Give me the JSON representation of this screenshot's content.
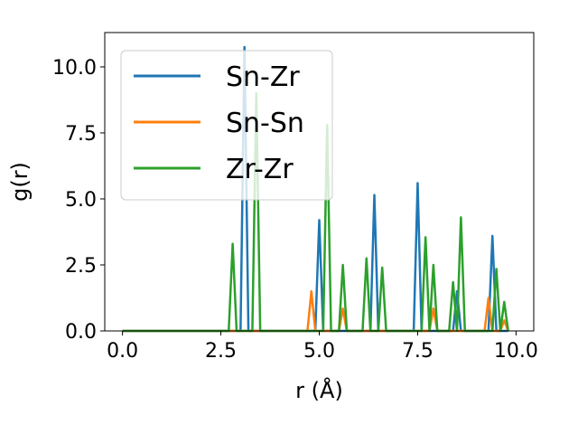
{
  "chart_data": {
    "type": "line",
    "xlabel": "r (Å)",
    "ylabel": "g(r)",
    "xlim": [
      -0.45,
      10.45
    ],
    "ylim": [
      0,
      11.3
    ],
    "xticks": [
      0.0,
      2.5,
      5.0,
      7.5,
      10.0
    ],
    "xtick_labels": [
      "0.0",
      "2.5",
      "5.0",
      "7.5",
      "10.0"
    ],
    "yticks": [
      0.0,
      2.5,
      5.0,
      7.5,
      10.0
    ],
    "ytick_labels": [
      "0.0",
      "2.5",
      "5.0",
      "7.5",
      "10.0"
    ],
    "grid": false,
    "legend_position": "top-left",
    "series": [
      {
        "name": "Sn-Zr",
        "color": "#1f77b4",
        "x": [
          0.0,
          3.0,
          3.1,
          3.2,
          4.9,
          5.0,
          5.1,
          6.3,
          6.4,
          6.5,
          7.4,
          7.5,
          7.6,
          8.4,
          8.5,
          8.6,
          9.3,
          9.4,
          9.5,
          9.8
        ],
        "y": [
          0.0,
          0.0,
          10.75,
          0.0,
          0.0,
          4.2,
          0.0,
          0.0,
          5.15,
          0.0,
          0.0,
          5.6,
          0.0,
          0.0,
          1.5,
          0.0,
          0.0,
          3.6,
          0.0,
          0.0
        ]
      },
      {
        "name": "Sn-Sn",
        "color": "#ff7f0e",
        "x": [
          0.0,
          4.7,
          4.8,
          4.9,
          5.5,
          5.6,
          5.7,
          7.8,
          7.9,
          8.0,
          9.2,
          9.3,
          9.4,
          9.6,
          9.7,
          9.8
        ],
        "y": [
          0.0,
          0.0,
          1.5,
          0.0,
          0.0,
          0.85,
          0.0,
          0.0,
          0.85,
          0.0,
          0.0,
          1.25,
          0.0,
          0.0,
          0.4,
          0.0
        ]
      },
      {
        "name": "Zr-Zr",
        "color": "#2ca02c",
        "x": [
          0.0,
          2.7,
          2.8,
          2.9,
          3.3,
          3.4,
          3.5,
          5.1,
          5.2,
          5.3,
          5.5,
          5.6,
          5.7,
          6.1,
          6.2,
          6.3,
          6.5,
          6.6,
          6.7,
          7.6,
          7.7,
          7.8,
          7.9,
          8.0,
          8.3,
          8.4,
          8.5,
          8.6,
          8.7,
          9.4,
          9.5,
          9.6,
          9.7,
          9.8
        ],
        "y": [
          0.0,
          0.0,
          3.3,
          0.0,
          0.0,
          9.0,
          0.0,
          0.0,
          7.8,
          0.0,
          0.0,
          2.5,
          0.0,
          0.0,
          2.75,
          0.0,
          0.0,
          2.4,
          0.0,
          0.0,
          3.55,
          0.0,
          2.5,
          0.0,
          0.0,
          1.85,
          0.0,
          4.3,
          0.0,
          0.0,
          2.35,
          0.0,
          1.1,
          0.0
        ]
      }
    ]
  }
}
